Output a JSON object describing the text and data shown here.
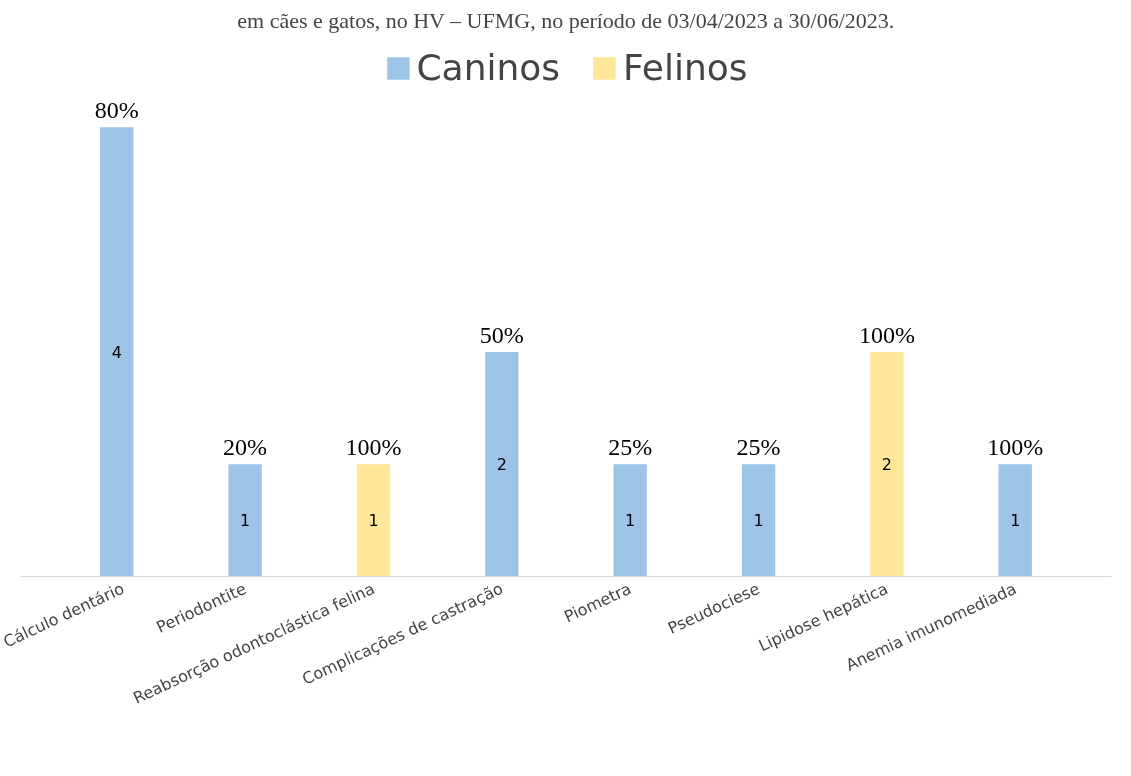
{
  "chart_data": {
    "type": "bar",
    "title": "em cães e gatos, no HV – UFMG, no período de 03/04/2023 a 30/06/2023.",
    "categories": [
      "Cálculo dentário",
      "Periodontite",
      "Reabsorção odontoclástica felina",
      "Complicações de castração",
      "Piometra",
      "Pseudociese",
      "Lipidose hepática",
      "Anemia imunomediada"
    ],
    "series": [
      {
        "name": "Caninos",
        "color": "#9dc3e6",
        "values": [
          4,
          1,
          null,
          2,
          1,
          1,
          null,
          1
        ]
      },
      {
        "name": "Felinos",
        "color": "#ffe699",
        "values": [
          null,
          null,
          1,
          null,
          null,
          null,
          2,
          null
        ]
      }
    ],
    "annotations": [
      {
        "text": "80%",
        "x": "Cálculo dentário",
        "y": 4
      },
      {
        "text": "20%",
        "x": "Periodontite",
        "y": 1
      },
      {
        "text": "100%",
        "x": "Reabsorção odontoclástica felina",
        "y": 1
      },
      {
        "text": "50%",
        "x": "Complicações de castração",
        "y": 2
      },
      {
        "text": "25%",
        "x": "Piometra",
        "y": 1
      },
      {
        "text": "25%",
        "x": "Pseudociese",
        "y": 1
      },
      {
        "text": "100%",
        "x": "Lipidose hepática",
        "y": 2
      },
      {
        "text": "100%",
        "x": "Anemia imunomediada",
        "y": 1
      }
    ],
    "data_labels": true,
    "legend": "top",
    "grid": false
  }
}
